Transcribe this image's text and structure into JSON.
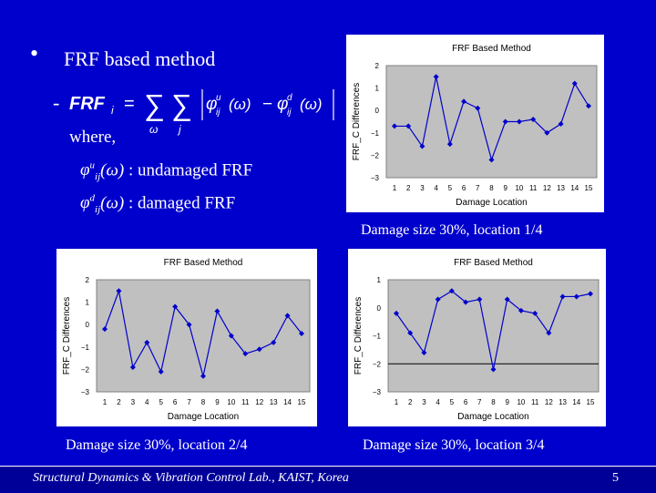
{
  "slide": {
    "bullet_glyph": "•",
    "heading": "FRF based method",
    "dash": "-",
    "formula_lhs": "FRF",
    "formula_sub": "i",
    "where": "where,",
    "def_undamaged": ": undamaged FRF",
    "def_damaged": ": damaged FRF",
    "phi_sup_u": "u",
    "phi_sup_d": "d",
    "phi_sub": "ij",
    "omega_arg": "(ω)",
    "sum_glyph": "∑",
    "sum_index_1": "ω",
    "sum_index_2": "j",
    "footer_text": "Structural Dynamics & Vibration Control Lab., KAIST, Korea",
    "page_number": "5"
  },
  "colors": {
    "background": "#0000cc",
    "plot_area": "#c0c0c0",
    "series": "#0000cc",
    "zero_line": "#000000"
  },
  "chart_data": [
    {
      "type": "line",
      "title": "FRF Based Method",
      "xlabel": "Damage Location",
      "ylabel": "FRF_C Differences",
      "x": [
        1,
        2,
        3,
        4,
        5,
        6,
        7,
        8,
        9,
        10,
        11,
        12,
        13,
        14,
        15
      ],
      "values": [
        -0.7,
        -0.7,
        -1.6,
        1.5,
        -1.5,
        0.4,
        0.1,
        -2.2,
        -0.5,
        -0.5,
        -0.4,
        -1.0,
        -0.6,
        1.2,
        0.2
      ],
      "ylim": [
        -3,
        2
      ],
      "yticks": [
        -3,
        -2,
        -1,
        0,
        1,
        2
      ],
      "caption": "Damage size 30%, location 1/4"
    },
    {
      "type": "line",
      "title": "FRF Based Method",
      "xlabel": "Damage Location",
      "ylabel": "FRF_C Differences",
      "x": [
        1,
        2,
        3,
        4,
        5,
        6,
        7,
        8,
        9,
        10,
        11,
        12,
        13,
        14,
        15
      ],
      "values": [
        -0.2,
        1.5,
        -1.9,
        -0.8,
        -2.1,
        0.8,
        0.0,
        -2.3,
        0.6,
        -0.5,
        -1.3,
        -1.1,
        -0.8,
        0.4,
        -0.4
      ],
      "ylim": [
        -3,
        2
      ],
      "yticks": [
        -3,
        -2,
        -1,
        0,
        1,
        2
      ],
      "caption": "Damage size 30%, location 2/4"
    },
    {
      "type": "line",
      "title": "FRF Based Method",
      "xlabel": "Damage Location",
      "ylabel": "FRF_C Differences",
      "x": [
        1,
        2,
        3,
        4,
        5,
        6,
        7,
        8,
        9,
        10,
        11,
        12,
        13,
        14,
        15
      ],
      "values": [
        -0.2,
        -0.9,
        -1.6,
        0.3,
        0.6,
        0.2,
        0.3,
        -2.2,
        0.3,
        -0.1,
        -0.2,
        -0.9,
        0.4,
        0.4,
        0.5
      ],
      "ylim": [
        -3,
        1
      ],
      "yticks": [
        -3,
        -2,
        -1,
        0,
        1
      ],
      "caption": "Damage size 30%, location 3/4"
    }
  ]
}
